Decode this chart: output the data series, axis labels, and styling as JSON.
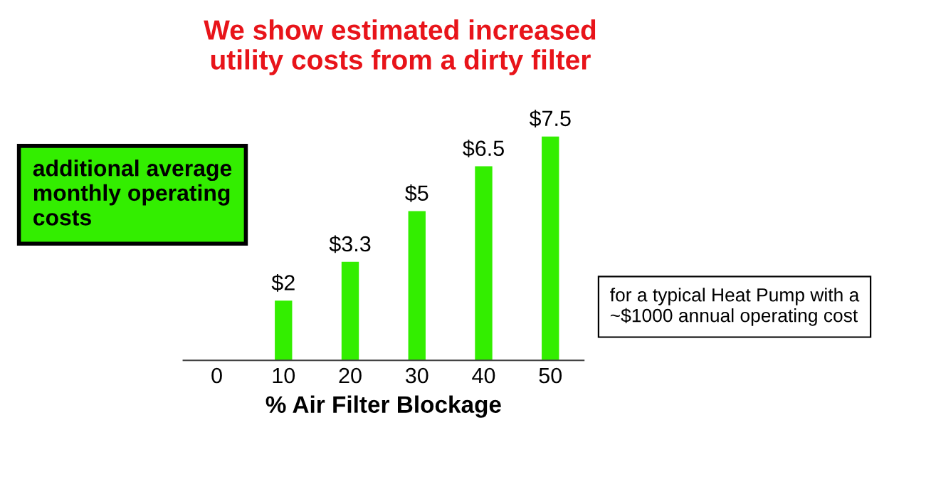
{
  "chart_data": {
    "type": "bar",
    "title": "We show estimated increased\nutility costs from a dirty filter",
    "xlabel": "% Air Filter Blockage",
    "x": [
      10,
      20,
      30,
      40,
      50
    ],
    "values": [
      2,
      3.3,
      5,
      6.5,
      7.5
    ],
    "value_labels": [
      "$2",
      "$3.3",
      "$5",
      "$6.5",
      "$7.5"
    ],
    "color": "#33ee00",
    "xlim": [
      -5,
      55
    ],
    "xticks": [
      0,
      10,
      20,
      30,
      40,
      50
    ],
    "tick_labels": "x",
    "grid": false,
    "annotations": [
      "additional average\nmonthly operating\ncosts",
      "for a typical Heat Pump with a\n~$1000 annual operating cost"
    ]
  }
}
